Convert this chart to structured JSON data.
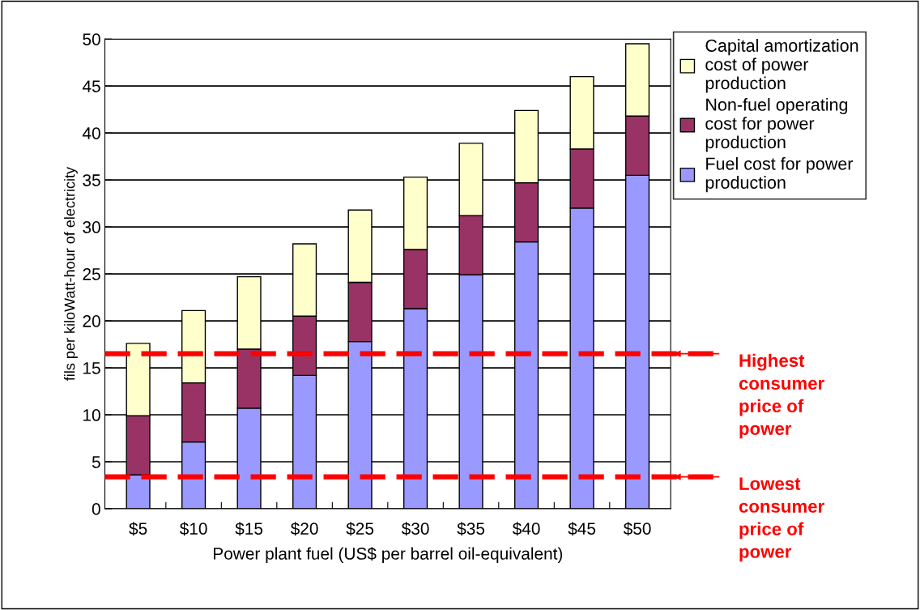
{
  "chart_data": {
    "type": "bar",
    "stacked": true,
    "xlabel": "Power plant fuel (US$ per barrel oil-equivalent)",
    "ylabel": "fils per kiloWatt-hour of electricity",
    "categories": [
      "$5",
      "$10",
      "$15",
      "$20",
      "$25",
      "$30",
      "$35",
      "$40",
      "$45",
      "$50"
    ],
    "series": [
      {
        "name": "Fuel cost for power\nproduction",
        "color": "#9999ff",
        "values": [
          3.6,
          7.1,
          10.7,
          14.2,
          17.8,
          21.3,
          24.9,
          28.4,
          32.0,
          35.5
        ]
      },
      {
        "name": "Non-fuel operating\ncost for power\nproduction",
        "color": "#993366",
        "values": [
          6.3,
          6.3,
          6.3,
          6.3,
          6.3,
          6.3,
          6.3,
          6.3,
          6.3,
          6.3
        ]
      },
      {
        "name": "Capital amortization\ncost of power\nproduction",
        "color": "#ffffcc",
        "values": [
          7.7,
          7.7,
          7.7,
          7.7,
          7.7,
          7.7,
          7.7,
          7.7,
          7.7,
          7.7
        ]
      }
    ],
    "ylim": [
      0,
      50
    ],
    "yticks": [
      0,
      5,
      10,
      15,
      20,
      25,
      30,
      35,
      40,
      45,
      50
    ],
    "grid": "y",
    "legend": "right",
    "ref_lines": [
      {
        "axis": "y",
        "value": 16.5,
        "label": "Highest\nconsumer\nprice of\npower",
        "color": "#ff0000",
        "line_style": "dashed"
      },
      {
        "axis": "y",
        "value": 3.4,
        "label": "Lowest\nconsumer\nprice of\npower",
        "color": "#ff0000",
        "line_style": "dashed"
      }
    ]
  }
}
